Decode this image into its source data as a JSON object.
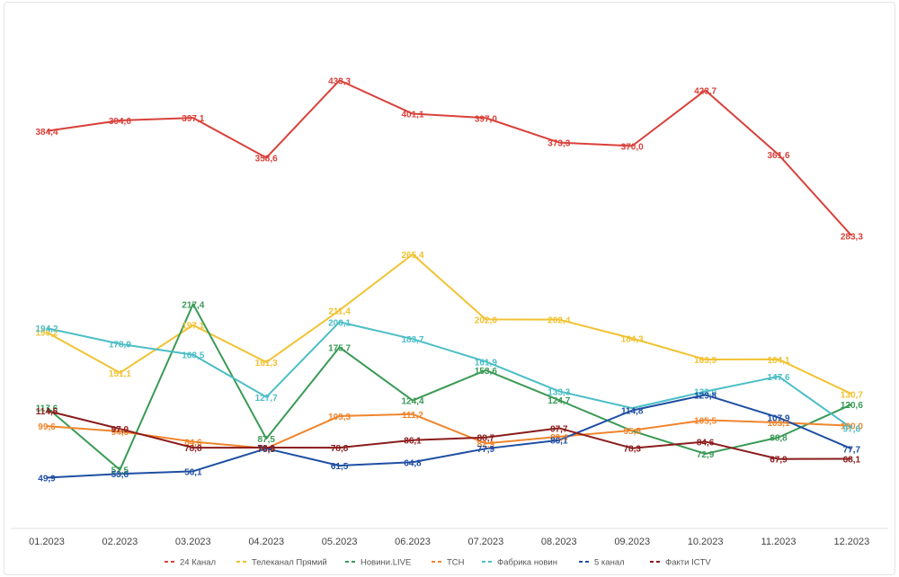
{
  "chart_data": {
    "type": "line",
    "title": "",
    "xlabel": "",
    "ylabel": "",
    "x": [
      "01.2023",
      "02.2023",
      "03.2023",
      "04.2023",
      "05.2023",
      "06.2023",
      "07.2023",
      "08.2023",
      "09.2023",
      "10.2023",
      "11.2023",
      "12.2023"
    ],
    "ylim": [
      0,
      510
    ],
    "grid": false,
    "legend_position": "bottom",
    "series": [
      {
        "name": "24 Канал",
        "color": "#d9413a",
        "values": [
          384.4,
          394.6,
          397.1,
          358.6,
          433.3,
          401.1,
          397.0,
          373.3,
          370.0,
          423.7,
          361.6,
          283.3
        ],
        "labels": [
          "384,4",
          "394,6",
          "397,1",
          "358,6",
          "433,3",
          "401,1",
          "397,0",
          "373,3",
          "370,0",
          "423,7",
          "361,6",
          "283,3"
        ]
      },
      {
        "name": "Телеканал Прямий",
        "color": "#f1c232",
        "values": [
          190.2,
          151.1,
          197.1,
          161.3,
          211.4,
          265.4,
          202.6,
          202.4,
          184.3,
          163.9,
          164.1,
          130.7
        ],
        "labels": [
          "190,2",
          "151,1",
          "197,1",
          "161,3",
          "211,4",
          "265,4",
          "202,6",
          "202,4",
          "184,3",
          "163,9",
          "164,1",
          "130,7"
        ]
      },
      {
        "name": "Новини.LIVE",
        "color": "#3a9a55",
        "values": [
          117.6,
          57.5,
          217.4,
          87.5,
          175.7,
          124.4,
          153.6,
          124.7,
          95.0,
          72.9,
          88.8,
          120.6
        ],
        "labels": [
          "117,6",
          "57,5",
          "217,4",
          "87,5",
          "175,7",
          "124,4",
          "153,6",
          "124,7",
          "",
          "72,9",
          "88,8",
          "120,6"
        ]
      },
      {
        "name": "ТСН",
        "color": "#f0852d",
        "values": [
          99.6,
          94.5,
          84.6,
          78.2,
          109.3,
          111.2,
          82.9,
          89.4,
          95.5,
          105.5,
          103.1,
          100.0
        ],
        "labels": [
          "99,6",
          "94,5",
          "84,6",
          "78,2",
          "109,3",
          "111,2",
          "82,9",
          "89,4",
          "95,5",
          "105,5",
          "103,1",
          "100,0"
        ]
      },
      {
        "name": "Фабрика новин",
        "color": "#4cbec6",
        "values": [
          194.2,
          178.9,
          168.5,
          127.7,
          200.1,
          183.7,
          161.9,
          133.3,
          117.0,
          133.0,
          147.6,
          97.6
        ],
        "labels": [
          "194,2",
          "178,9",
          "168,5",
          "127,7",
          "200,1",
          "183,7",
          "161,9",
          "133,3",
          "",
          "133,0",
          "147,6",
          "97,6"
        ]
      },
      {
        "name": "5 канал",
        "color": "#1f4fa3",
        "values": [
          49.9,
          53.6,
          56.1,
          78.0,
          61.5,
          64.8,
          77.9,
          86.1,
          114.8,
          129.8,
          107.9,
          77.7
        ],
        "labels": [
          "49,9",
          "53,6",
          "56,1",
          "78,0",
          "61,5",
          "64,8",
          "77,9",
          "86,1",
          "114,8",
          "129,8",
          "107,9",
          "77,7"
        ]
      },
      {
        "name": "Факти ICTV",
        "color": "#8b1c1c",
        "values": [
          114.5,
          97.0,
          78.8,
          78.9,
          78.8,
          86.1,
          88.7,
          97.7,
          78.3,
          84.6,
          67.9,
          68.1
        ],
        "labels": [
          "114,5",
          "97,0",
          "78,8",
          "78,9",
          "78,8",
          "86,1",
          "88,7",
          "97,7",
          "78,3",
          "84,6",
          "67,9",
          "68,1"
        ]
      }
    ]
  }
}
